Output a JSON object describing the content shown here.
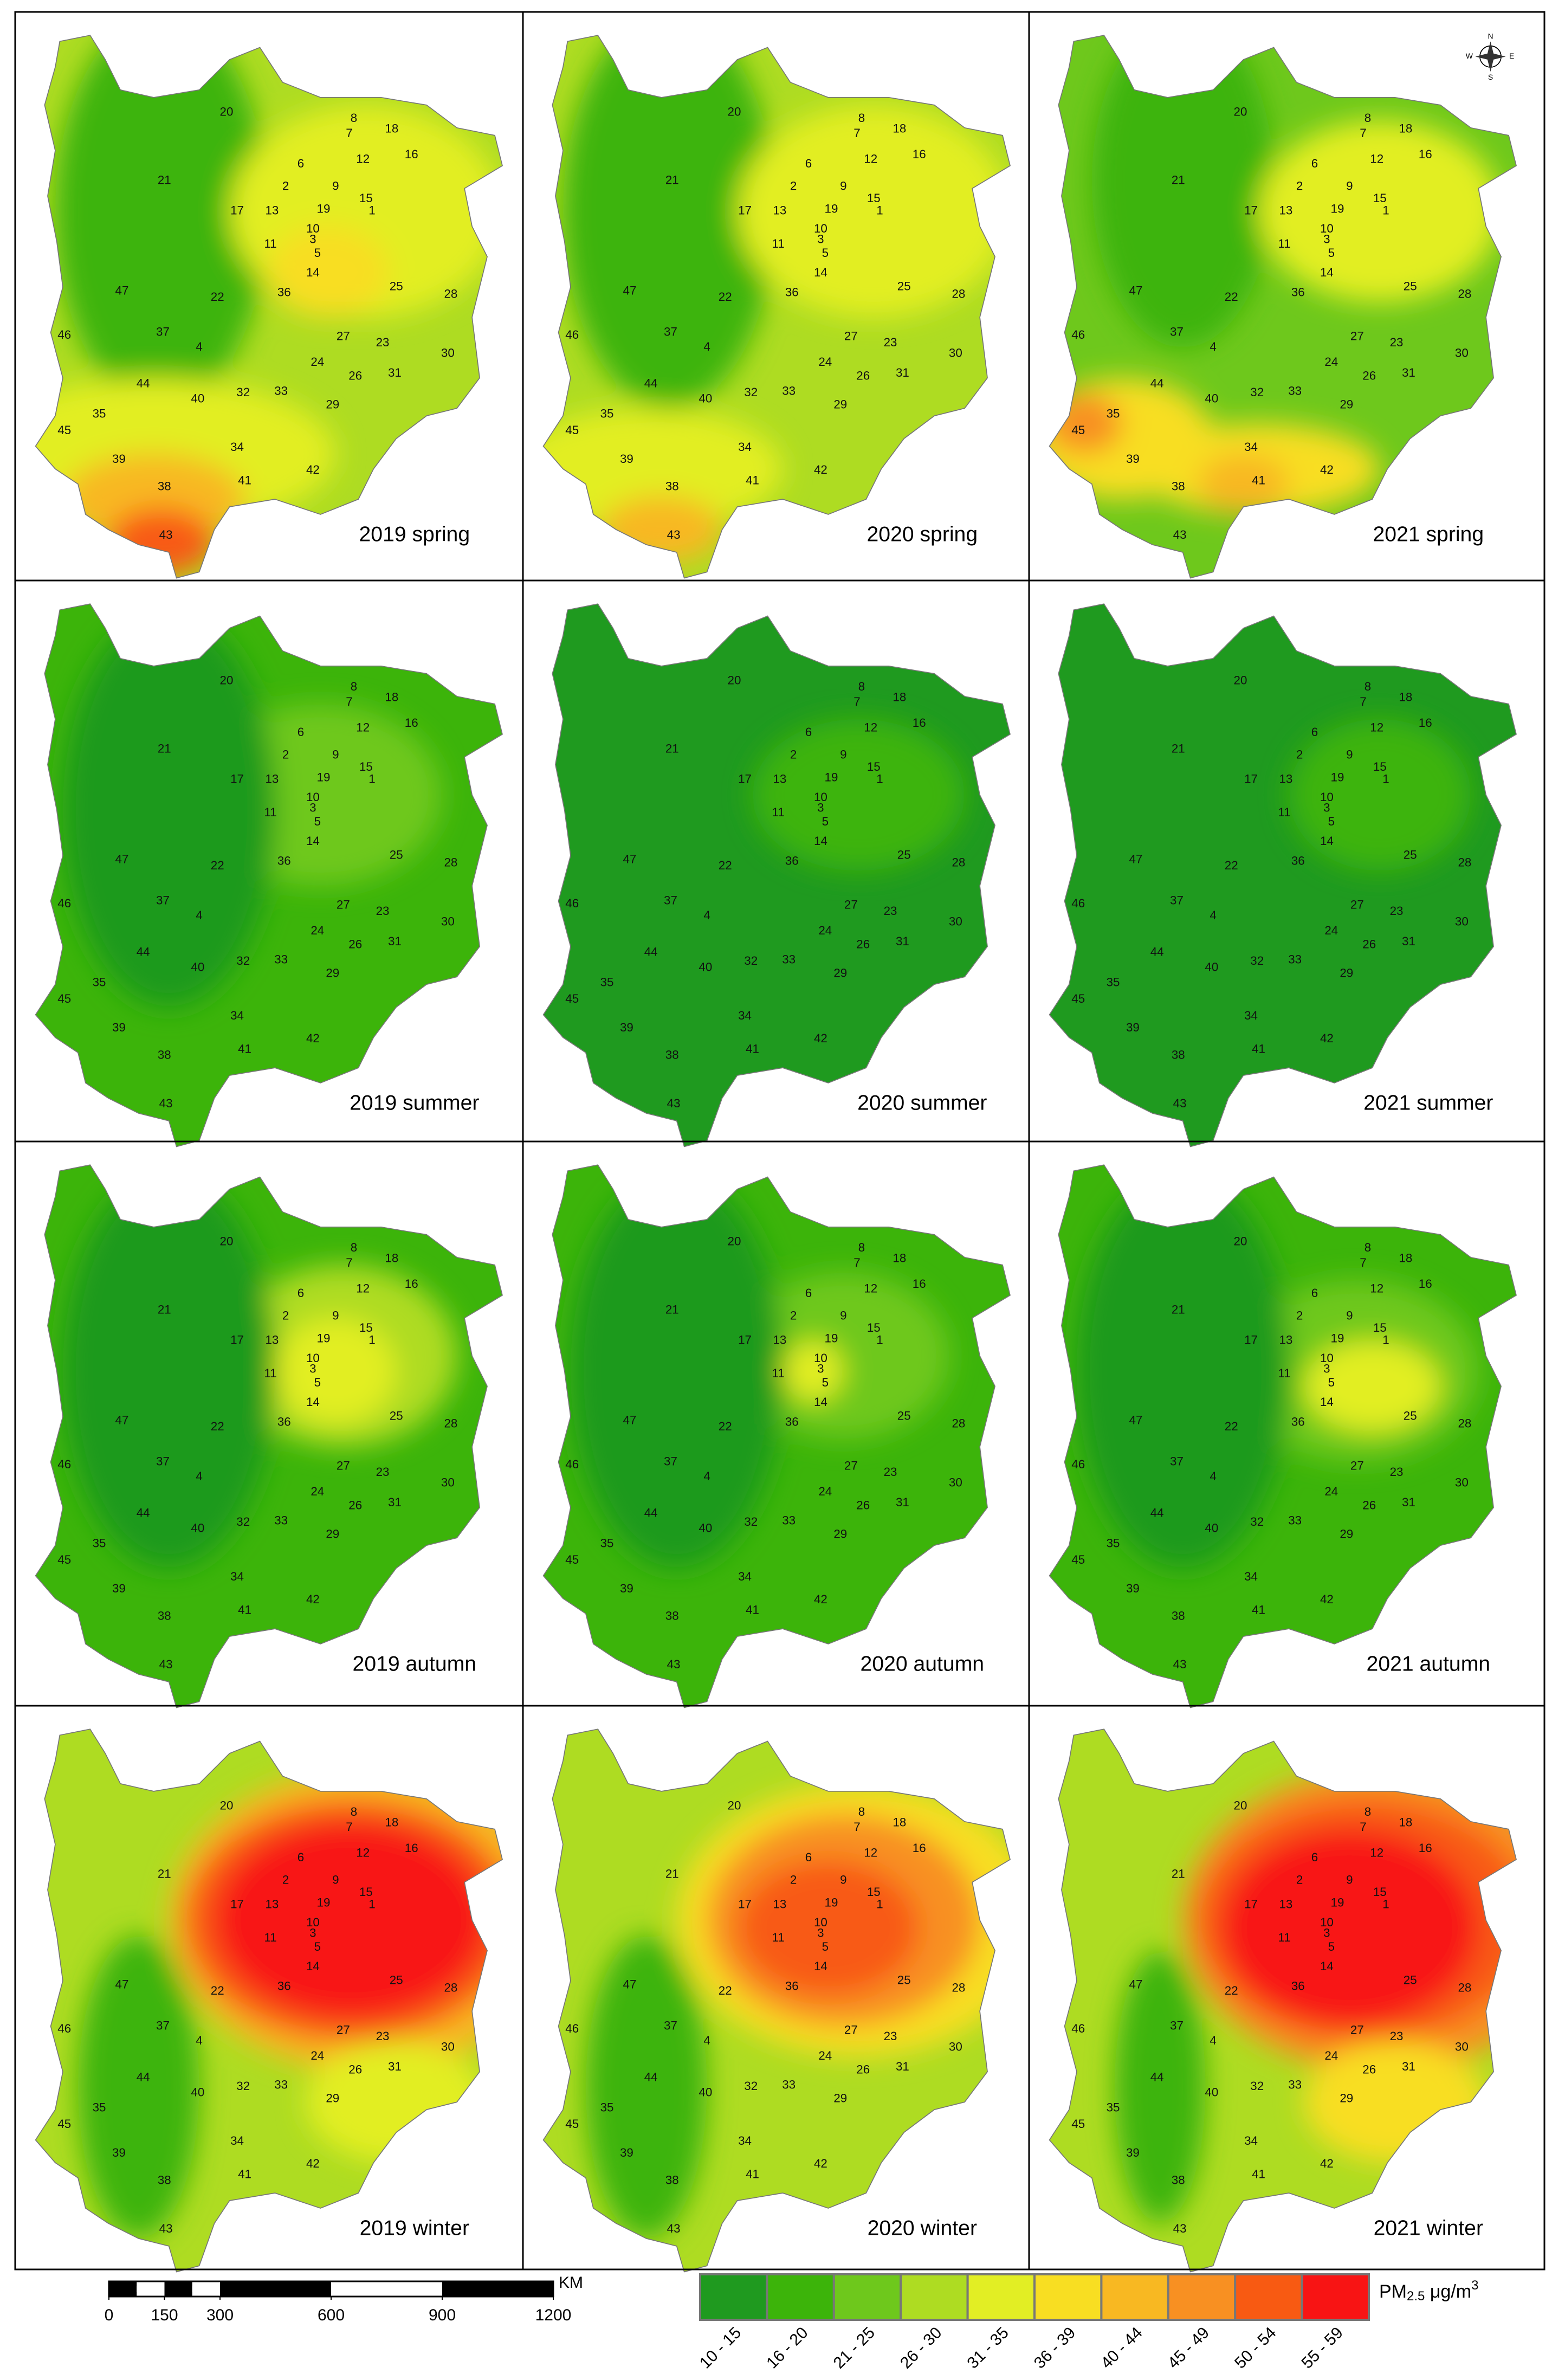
{
  "panels": [
    {
      "label": "2019 spring"
    },
    {
      "label": "2020 spring"
    },
    {
      "label": "2021 spring"
    },
    {
      "label": "2019 summer"
    },
    {
      "label": "2020 summer"
    },
    {
      "label": "2021 summer"
    },
    {
      "label": "2019 autumn"
    },
    {
      "label": "2020 autumn"
    },
    {
      "label": "2021 autumn"
    },
    {
      "label": "2019 winter"
    },
    {
      "label": "2020 winter"
    },
    {
      "label": "2021 winter"
    }
  ],
  "region_labels": [
    "1",
    "2",
    "3",
    "4",
    "5",
    "6",
    "7",
    "8",
    "9",
    "10",
    "11",
    "12",
    "13",
    "14",
    "15",
    "16",
    "17",
    "18",
    "19",
    "20",
    "21",
    "22",
    "23",
    "24",
    "25",
    "26",
    "27",
    "28",
    "29",
    "30",
    "31",
    "32",
    "33",
    "34",
    "35",
    "36",
    "37",
    "38",
    "39",
    "40",
    "41",
    "42",
    "43",
    "44",
    "45",
    "46",
    "47"
  ],
  "compass": {
    "n": "N",
    "e": "E",
    "s": "S",
    "w": "W"
  },
  "scale_bar": {
    "ticks": [
      0,
      150,
      300,
      600,
      900,
      1200
    ],
    "unit": "KM"
  },
  "legend": {
    "title": "PM",
    "title_sub": "2.5",
    "title_unit": " μg/m",
    "title_sup": "3",
    "classes": [
      {
        "label": "10 - 15",
        "color": "#1f9a1f"
      },
      {
        "label": "16 - 20",
        "color": "#3cb40a"
      },
      {
        "label": "21 - 25",
        "color": "#6ec81c"
      },
      {
        "label": "26 - 30",
        "color": "#aedc22"
      },
      {
        "label": "31 - 35",
        "color": "#e2ee24"
      },
      {
        "label": "36 - 39",
        "color": "#f8de22"
      },
      {
        "label": "40 - 44",
        "color": "#f8b822"
      },
      {
        "label": "45 - 49",
        "color": "#f89022"
      },
      {
        "label": "50 - 54",
        "color": "#f85a12"
      },
      {
        "label": "55 - 59",
        "color": "#f81414"
      }
    ]
  }
}
